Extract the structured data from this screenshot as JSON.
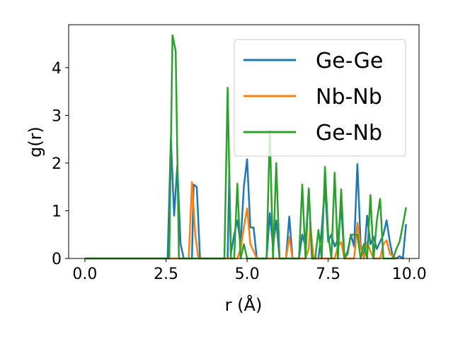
{
  "chart_data": {
    "type": "line",
    "title": "",
    "xlabel": "r (Å)",
    "ylabel": "g(r)",
    "xlim": [
      -0.5,
      10.3
    ],
    "ylim": [
      0,
      4.9
    ],
    "x_ticks": [
      0.0,
      2.5,
      5.0,
      7.5,
      10.0
    ],
    "x_tick_labels": [
      "0.0",
      "2.5",
      "5.0",
      "7.5",
      "10.0"
    ],
    "y_ticks": [
      0,
      1,
      2,
      3,
      4
    ],
    "y_tick_labels": [
      "0",
      "1",
      "2",
      "3",
      "4"
    ],
    "grid": false,
    "legend_position": "top-right",
    "series": [
      {
        "name": "Ge-Ge",
        "color": "#1f77b4",
        "x": [
          0.0,
          2.5,
          2.55,
          2.65,
          2.75,
          2.85,
          2.95,
          3.05,
          3.3,
          3.35,
          3.45,
          3.55,
          4.3,
          4.4,
          4.45,
          4.5,
          4.6,
          4.7,
          4.8,
          4.9,
          5.0,
          5.1,
          5.2,
          5.3,
          5.4,
          5.6,
          5.7,
          5.8,
          5.9,
          6.0,
          6.1,
          6.2,
          6.3,
          6.4,
          6.5,
          6.6,
          6.7,
          6.8,
          6.9,
          7.0,
          7.1,
          7.2,
          7.3,
          7.4,
          7.5,
          7.6,
          7.7,
          7.8,
          7.9,
          8.0,
          8.1,
          8.2,
          8.3,
          8.4,
          8.5,
          8.6,
          8.7,
          8.8,
          8.9,
          9.0,
          9.1,
          9.2,
          9.3,
          9.4,
          9.5,
          9.6,
          9.7,
          9.8,
          9.9
        ],
        "values": [
          0,
          0,
          0,
          2.52,
          0.9,
          1.95,
          0.3,
          0,
          0,
          1.55,
          1.5,
          0,
          0,
          0,
          1.8,
          0.1,
          0.5,
          0.8,
          0.3,
          1.5,
          2.08,
          0.65,
          0.65,
          0,
          0,
          0,
          0.95,
          0.25,
          0.8,
          0,
          0,
          0,
          0.88,
          0,
          0,
          0,
          0.5,
          0.25,
          1.45,
          0,
          0,
          0,
          0.6,
          1.52,
          0.35,
          0.5,
          0.25,
          0.4,
          1.08,
          0,
          0.15,
          0.5,
          0.25,
          1.98,
          0.3,
          0,
          0.9,
          0.3,
          0.45,
          0.2,
          0.35,
          0.5,
          0.8,
          0.35,
          0,
          0,
          0.05,
          0,
          0.72
        ]
      },
      {
        "name": "Nb-Nb",
        "color": "#ff7f0e",
        "x": [
          0.0,
          3.2,
          3.3,
          3.4,
          3.5,
          4.7,
          4.8,
          4.9,
          5.0,
          5.1,
          5.2,
          5.3,
          6.2,
          6.3,
          6.4,
          6.8,
          6.9,
          6.95,
          7.05,
          7.7,
          7.8,
          7.9,
          8.0,
          8.1,
          8.3,
          8.4,
          8.5,
          8.6,
          8.7,
          8.8,
          8.9,
          9.1,
          9.2,
          9.3,
          9.4,
          9.6
        ],
        "values": [
          0,
          0,
          1.6,
          0.5,
          0,
          0,
          0.2,
          0.65,
          1.05,
          0.3,
          0.15,
          0,
          0,
          0.45,
          0,
          0,
          0.2,
          0.72,
          0,
          0,
          0.25,
          0.35,
          0,
          0,
          0,
          0.75,
          0.25,
          0,
          0.35,
          0.15,
          0,
          0,
          0.3,
          0.38,
          0.1,
          0
        ]
      },
      {
        "name": "Ge-Nb",
        "color": "#2ca02c",
        "x": [
          0.0,
          2.6,
          2.7,
          2.8,
          2.9,
          3.0,
          4.3,
          4.4,
          4.5,
          4.6,
          4.7,
          4.8,
          4.9,
          5.0,
          5.6,
          5.7,
          5.8,
          5.9,
          6.0,
          6.6,
          6.7,
          6.8,
          6.9,
          7.0,
          7.1,
          7.2,
          7.3,
          7.4,
          7.5,
          7.6,
          7.7,
          7.8,
          7.9,
          8.0,
          8.1,
          8.2,
          8.3,
          8.4,
          8.5,
          8.6,
          8.7,
          8.8,
          8.9,
          9.0,
          9.1,
          9.2,
          9.3,
          9.4,
          9.5,
          9.6,
          9.7,
          9.8,
          9.9
        ],
        "values": [
          0,
          0,
          4.68,
          4.35,
          0,
          0,
          0,
          3.58,
          0,
          0,
          1.57,
          0,
          0.3,
          0,
          0,
          2.68,
          0,
          2.0,
          0,
          0,
          1.55,
          0,
          1.47,
          0,
          0,
          0.6,
          0,
          1.92,
          0.5,
          0,
          1.8,
          0,
          1.45,
          0,
          0.1,
          0.5,
          0.5,
          0.5,
          0,
          0.3,
          0,
          1.33,
          0,
          0.8,
          1.25,
          0,
          0,
          0,
          0,
          0.2,
          0.35,
          0.7,
          1.07
        ]
      }
    ]
  }
}
